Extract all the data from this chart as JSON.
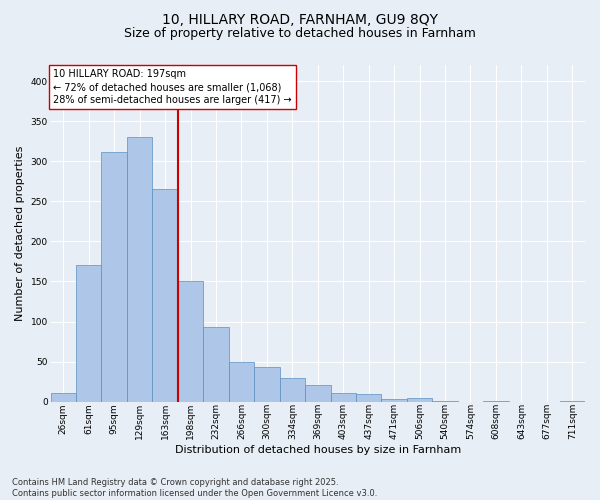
{
  "title1": "10, HILLARY ROAD, FARNHAM, GU9 8QY",
  "title2": "Size of property relative to detached houses in Farnham",
  "xlabel": "Distribution of detached houses by size in Farnham",
  "ylabel": "Number of detached properties",
  "categories": [
    "26sqm",
    "61sqm",
    "95sqm",
    "129sqm",
    "163sqm",
    "198sqm",
    "232sqm",
    "266sqm",
    "300sqm",
    "334sqm",
    "369sqm",
    "403sqm",
    "437sqm",
    "471sqm",
    "506sqm",
    "540sqm",
    "574sqm",
    "608sqm",
    "643sqm",
    "677sqm",
    "711sqm"
  ],
  "values": [
    11,
    170,
    312,
    330,
    265,
    151,
    93,
    50,
    43,
    30,
    21,
    11,
    9,
    3,
    4,
    1,
    0,
    1,
    0,
    0,
    1
  ],
  "bar_color": "#aec6e8",
  "bar_edge_color": "#5a8fc2",
  "vline_index": 5,
  "vline_color": "#cc0000",
  "annotation_text": "10 HILLARY ROAD: 197sqm\n← 72% of detached houses are smaller (1,068)\n28% of semi-detached houses are larger (417) →",
  "annotation_box_color": "#ffffff",
  "annotation_box_edge_color": "#cc0000",
  "ylim": [
    0,
    420
  ],
  "yticks": [
    0,
    50,
    100,
    150,
    200,
    250,
    300,
    350,
    400
  ],
  "background_color": "#e8eef5",
  "plot_bg_color": "#e8eef5",
  "footer": "Contains HM Land Registry data © Crown copyright and database right 2025.\nContains public sector information licensed under the Open Government Licence v3.0.",
  "title_fontsize": 10,
  "subtitle_fontsize": 9,
  "label_fontsize": 8,
  "tick_fontsize": 6.5,
  "footer_fontsize": 6
}
